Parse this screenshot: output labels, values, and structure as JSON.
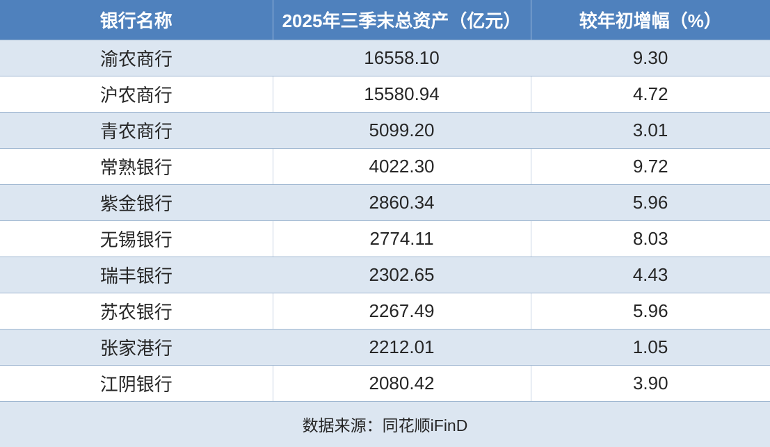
{
  "table": {
    "columns": [
      {
        "label": "银行名称"
      },
      {
        "label": "2025年三季末总资产（亿元）"
      },
      {
        "label": "较年初增幅（%）"
      }
    ],
    "rows": [
      {
        "bank": "渝农商行",
        "assets": "16558.10",
        "growth": "9.30"
      },
      {
        "bank": "沪农商行",
        "assets": "15580.94",
        "growth": "4.72"
      },
      {
        "bank": "青农商行",
        "assets": "5099.20",
        "growth": "3.01"
      },
      {
        "bank": "常熟银行",
        "assets": "4022.30",
        "growth": "9.72"
      },
      {
        "bank": "紫金银行",
        "assets": "2860.34",
        "growth": "5.96"
      },
      {
        "bank": "无锡银行",
        "assets": "2774.11",
        "growth": "8.03"
      },
      {
        "bank": "瑞丰银行",
        "assets": "2302.65",
        "growth": "4.43"
      },
      {
        "bank": "苏农银行",
        "assets": "2267.49",
        "growth": "5.96"
      },
      {
        "bank": "张家港行",
        "assets": "2212.01",
        "growth": "1.05"
      },
      {
        "bank": "江阴银行",
        "assets": "2080.42",
        "growth": "3.90"
      }
    ],
    "source_note": "数据来源：同花顺iFinD"
  },
  "colors": {
    "header_bg": "#4F81BD",
    "header_text": "#FFFFFF",
    "band_row_bg": "#DCE6F1",
    "plain_row_bg": "#FFFFFF",
    "row_border": "#9FB7D1",
    "column_divider": "#C6D3E3",
    "body_text": "#262626"
  },
  "chart_data": {
    "type": "table",
    "title": "",
    "columns": [
      "银行名称",
      "2025年三季末总资产（亿元）",
      "较年初增幅（%）"
    ],
    "rows": [
      [
        "渝农商行",
        16558.1,
        9.3
      ],
      [
        "沪农商行",
        15580.94,
        4.72
      ],
      [
        "青农商行",
        5099.2,
        3.01
      ],
      [
        "常熟银行",
        4022.3,
        9.72
      ],
      [
        "紫金银行",
        2860.34,
        5.96
      ],
      [
        "无锡银行",
        2774.11,
        8.03
      ],
      [
        "瑞丰银行",
        2302.65,
        4.43
      ],
      [
        "苏农银行",
        2267.49,
        5.96
      ],
      [
        "张家港行",
        2212.01,
        1.05
      ],
      [
        "江阴银行",
        2080.42,
        3.9
      ]
    ],
    "source": "数据来源：同花顺iFinD",
    "layout": {
      "banded_rows": true,
      "header_style": "blue",
      "alignment": "center"
    }
  }
}
